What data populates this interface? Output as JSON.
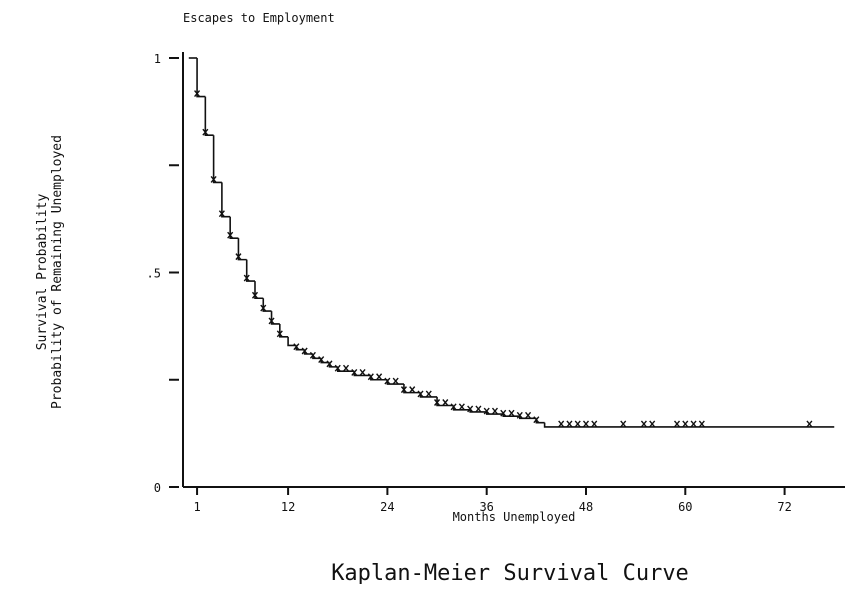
{
  "chart_data": {
    "type": "step",
    "title": "Escapes to Employment",
    "subtitle": "Kaplan-Meier Survival Curve",
    "xlabel": "Months Unemployed",
    "ylabel": [
      "Survival Probability",
      "Probability of Remaining Unemployed"
    ],
    "x": [
      0,
      1,
      2,
      3,
      4,
      5,
      6,
      7,
      8,
      9,
      10,
      11,
      12,
      13,
      14,
      15,
      16,
      17,
      18,
      20,
      22,
      24,
      26,
      28,
      30,
      32,
      34,
      36,
      38,
      40,
      42,
      43
    ],
    "values": [
      1.0,
      0.91,
      0.82,
      0.71,
      0.63,
      0.58,
      0.53,
      0.48,
      0.44,
      0.41,
      0.38,
      0.35,
      0.33,
      0.32,
      0.31,
      0.3,
      0.29,
      0.28,
      0.27,
      0.26,
      0.25,
      0.24,
      0.22,
      0.21,
      0.19,
      0.18,
      0.175,
      0.17,
      0.165,
      0.16,
      0.15,
      0.14
    ],
    "x_end": 78,
    "censored_x": [
      1,
      2,
      3,
      4,
      5,
      6,
      7,
      8,
      9,
      10,
      11,
      13,
      14,
      15,
      16,
      17,
      18,
      19,
      20,
      21,
      22,
      23,
      24,
      25,
      26,
      27,
      28,
      29,
      30,
      31,
      32,
      33,
      34,
      35,
      36,
      37,
      38,
      39,
      40,
      41,
      42,
      45,
      46,
      47,
      48,
      49,
      52.5,
      55,
      56,
      59,
      60,
      61,
      62,
      75
    ],
    "color": "#111111",
    "xlim": [
      -0.7,
      79.3
    ],
    "ylim": [
      0,
      1
    ],
    "xticks": [
      1,
      12,
      24,
      36,
      48,
      60,
      72
    ],
    "yticks": [
      0,
      {
        "value": 0.5,
        "label": ".5"
      },
      1
    ],
    "minor_yticks": [
      0.25,
      0.75
    ]
  }
}
